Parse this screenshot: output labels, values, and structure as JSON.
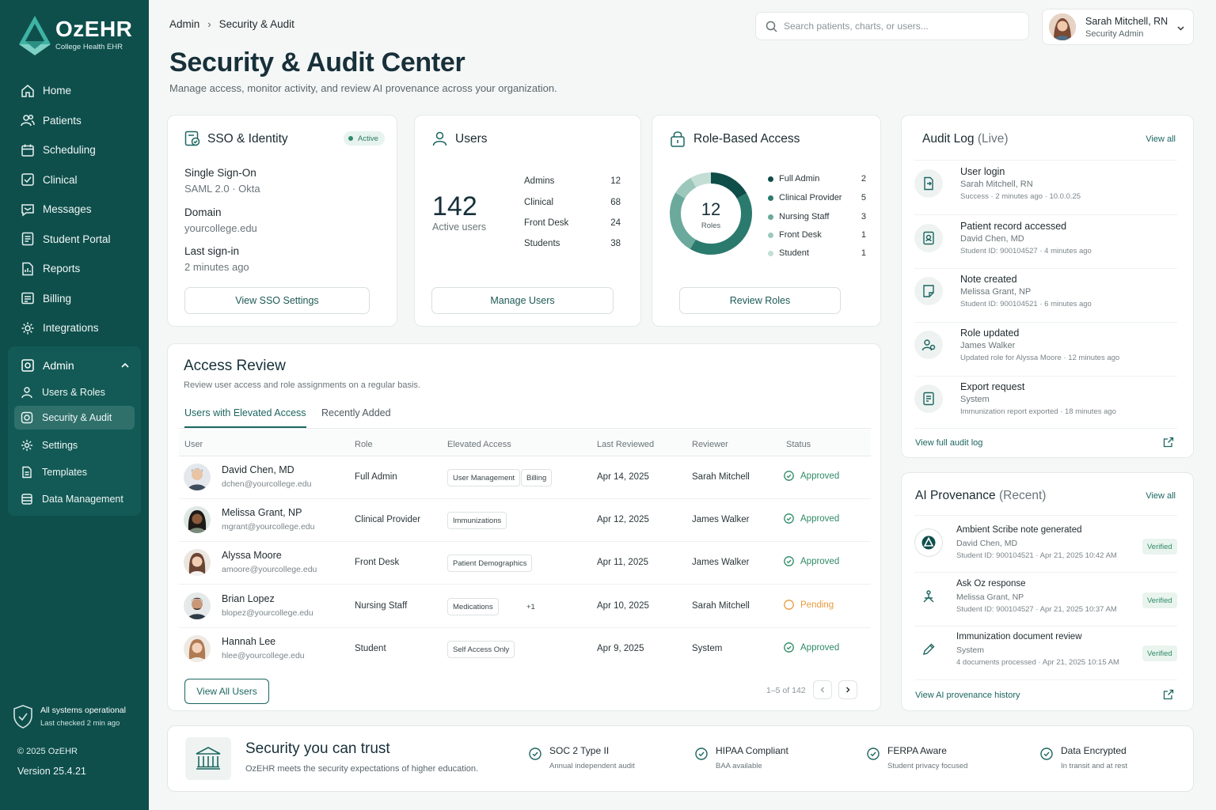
{
  "brand": {
    "name": "OzEHR",
    "subtitle": "College Health EHR"
  },
  "nav": {
    "items": [
      {
        "label": "Home",
        "icon": "home-icon"
      },
      {
        "label": "Patients",
        "icon": "patients-icon"
      },
      {
        "label": "Scheduling",
        "icon": "calendar-icon"
      },
      {
        "label": "Clinical",
        "icon": "clinical-icon"
      },
      {
        "label": "Messages",
        "icon": "message-icon"
      },
      {
        "label": "Student Portal",
        "icon": "portal-icon"
      },
      {
        "label": "Reports",
        "icon": "reports-icon"
      },
      {
        "label": "Billing",
        "icon": "billing-icon"
      },
      {
        "label": "Integrations",
        "icon": "integrations-icon"
      }
    ],
    "admin": {
      "label": "Admin",
      "items": [
        {
          "label": "Users & Roles"
        },
        {
          "label": "Security & Audit",
          "active": true
        },
        {
          "label": "Settings"
        },
        {
          "label": "Templates"
        },
        {
          "label": "Data Management"
        }
      ]
    }
  },
  "system": {
    "status": "All systems operational",
    "checked": "Last checked 2 min ago"
  },
  "footer": {
    "copyright": "© 2025 OzEHR",
    "version": "Version 25.4.21"
  },
  "breadcrumb": [
    "Admin",
    "Security & Audit"
  ],
  "page": {
    "title": "Security & Audit Center",
    "subtitle": "Manage access, monitor activity, and review AI provenance across your organization."
  },
  "search": {
    "placeholder": "Search patients, charts, or users..."
  },
  "user": {
    "name": "Sarah Mitchell, RN",
    "role": "Security Admin"
  },
  "sso": {
    "title": "SSO & Identity",
    "badge": "Active",
    "fields": [
      {
        "label": "Single Sign-On",
        "value": "SAML 2.0 · Okta"
      },
      {
        "label": "Domain",
        "value": "yourcollege.edu"
      },
      {
        "label": "Last sign-in",
        "value": "2 minutes ago"
      }
    ],
    "button": "View SSO Settings"
  },
  "users": {
    "title": "Users",
    "count": "142",
    "count_label": "Active users",
    "breakdown": [
      {
        "label": "Admins",
        "value": "12"
      },
      {
        "label": "Clinical",
        "value": "68"
      },
      {
        "label": "Front Desk",
        "value": "24"
      },
      {
        "label": "Students",
        "value": "38"
      }
    ],
    "button": "Manage Users"
  },
  "rbac": {
    "title": "Role-Based Access",
    "count": "12",
    "count_label": "Roles",
    "roles": [
      {
        "label": "Full Admin",
        "value": "2",
        "color": "#0f4d49"
      },
      {
        "label": "Clinical Provider",
        "value": "5",
        "color": "#2b7a6e"
      },
      {
        "label": "Nursing Staff",
        "value": "3",
        "color": "#6aa99b"
      },
      {
        "label": "Front Desk",
        "value": "1",
        "color": "#9cc8bc"
      },
      {
        "label": "Student",
        "value": "1",
        "color": "#c4ded6"
      }
    ],
    "button": "Review Roles"
  },
  "access_review": {
    "title": "Access Review",
    "subtitle": "Review user access and role assignments on a regular basis.",
    "tabs": [
      "Users with Elevated Access",
      "Recently Added"
    ],
    "columns": [
      "User",
      "Role",
      "Elevated Access",
      "Last Reviewed",
      "Reviewer",
      "Status"
    ],
    "rows": [
      {
        "name": "David Chen, MD",
        "email": "dchen@yourcollege.edu",
        "role": "Full Admin",
        "access": [
          "User Management",
          "Billing"
        ],
        "reviewed": "Apr 14, 2025",
        "reviewer": "Sarah Mitchell",
        "status": "Approved"
      },
      {
        "name": "Melissa Grant, NP",
        "email": "mgrant@yourcollege.edu",
        "role": "Clinical Provider",
        "access": [
          "Immunizations"
        ],
        "reviewed": "Apr 12, 2025",
        "reviewer": "James Walker",
        "status": "Approved"
      },
      {
        "name": "Alyssa Moore",
        "email": "amoore@yourcollege.edu",
        "role": "Front Desk",
        "access": [
          "Patient Demographics"
        ],
        "reviewed": "Apr 11, 2025",
        "reviewer": "James Walker",
        "status": "Approved"
      },
      {
        "name": "Brian Lopez",
        "email": "blopez@yourcollege.edu",
        "role": "Nursing Staff",
        "access": [
          "Medications",
          "+1"
        ],
        "reviewed": "Apr 10, 2025",
        "reviewer": "Sarah Mitchell",
        "status": "Pending"
      },
      {
        "name": "Hannah Lee",
        "email": "hlee@yourcollege.edu",
        "role": "Student",
        "access": [
          "Self Access Only"
        ],
        "reviewed": "Apr 9, 2025",
        "reviewer": "System",
        "status": "Approved"
      }
    ],
    "button": "View All Users",
    "pagination": "1–5 of 142"
  },
  "audit": {
    "title": "Audit Log",
    "title_suffix": "(Live)",
    "view_all": "View all",
    "items": [
      {
        "title": "User login",
        "line2": "Sarah Mitchell, RN",
        "line3": "Success  ·  2 minutes ago  ·  10.0.0.25",
        "icon": "login-icon"
      },
      {
        "title": "Patient record accessed",
        "line2": "David Chen, MD",
        "line3": "Student ID: 900104527  ·  4 minutes ago",
        "icon": "record-icon"
      },
      {
        "title": "Note created",
        "line2": "Melissa Grant, NP",
        "line3": "Student ID: 900104521  ·  6 minutes ago",
        "icon": "note-icon"
      },
      {
        "title": "Role updated",
        "line2": "James Walker",
        "line3": "Updated role for Alyssa Moore  ·  12 minutes ago",
        "icon": "role-icon"
      },
      {
        "title": "Export request",
        "line2": "System",
        "line3": "Immunization report exported  ·  18 minutes ago",
        "icon": "export-icon"
      }
    ],
    "footer_link": "View full audit log"
  },
  "ai": {
    "title": "AI Provenance",
    "title_suffix": "(Recent)",
    "view_all": "View all",
    "items": [
      {
        "title": "Ambient Scribe note generated",
        "line2": "David Chen, MD",
        "line3": "Student ID: 900104521  ·  Apr 21, 2025 10:42 AM",
        "badge": "Verified"
      },
      {
        "title": "Ask Oz response",
        "line2": "Melissa Grant, NP",
        "line3": "Student ID: 900104527  ·  Apr 21, 2025 10:37 AM",
        "badge": "Verified"
      },
      {
        "title": "Immunization document review",
        "line2": "System",
        "line3": "4 documents processed  ·  Apr 21, 2025 10:15 AM",
        "badge": "Verified"
      }
    ],
    "footer_link": "View AI provenance history"
  },
  "trust": {
    "title": "Security you can trust",
    "subtitle": "OzEHR meets the security expectations of higher education.",
    "certs": [
      {
        "title": "SOC 2 Type II",
        "sub": "Annual independent audit"
      },
      {
        "title": "HIPAA Compliant",
        "sub": "BAA available"
      },
      {
        "title": "FERPA Aware",
        "sub": "Student privacy focused"
      },
      {
        "title": "Data Encrypted",
        "sub": "In transit and at rest"
      }
    ]
  },
  "colors": {
    "sidebar": "#0e4f4c",
    "accent": "#1b6660",
    "approved": "#2e8a66",
    "pending": "#e89a3c"
  }
}
